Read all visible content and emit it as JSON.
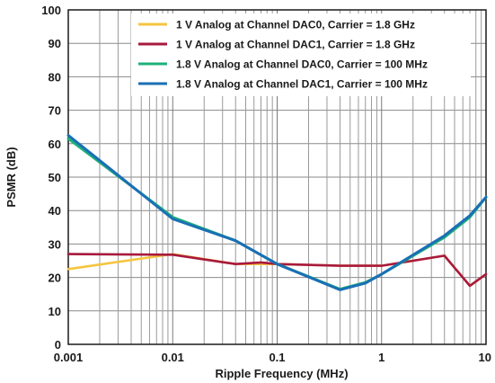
{
  "chart_data": {
    "type": "line",
    "title": "",
    "xlabel": "Ripple Frequency (MHz)",
    "ylabel": "PSMR (dB)",
    "xscale": "log",
    "xlim": [
      0.001,
      10
    ],
    "ylim": [
      0,
      100
    ],
    "x_ticks": [
      0.001,
      0.01,
      0.1,
      1,
      10
    ],
    "x_tick_labels": [
      "0.001",
      "0.01",
      "0.1",
      "1",
      "10"
    ],
    "y_ticks": [
      0,
      10,
      20,
      30,
      40,
      50,
      60,
      70,
      80,
      90,
      100
    ],
    "y_tick_labels": [
      "0",
      "10",
      "20",
      "30",
      "40",
      "50",
      "60",
      "70",
      "80",
      "90",
      "100"
    ],
    "grid": true,
    "legend_position": "top-right",
    "series": [
      {
        "name": "1 V Analog at Channel DAC0, Carrier = 1.8 GHz",
        "color": "#f5c540",
        "x": [
          0.001,
          0.01,
          0.04,
          0.1,
          0.4,
          1,
          4,
          7,
          10
        ],
        "y": [
          22.5,
          27,
          24,
          24,
          23.5,
          23.5,
          26.5,
          17.5,
          21
        ]
      },
      {
        "name": "1 V Analog at Channel DAC1, Carrier = 1.8 GHz",
        "color": "#a8193d",
        "x": [
          0.001,
          0.01,
          0.04,
          0.07,
          0.1,
          0.4,
          1,
          4,
          7,
          10
        ],
        "y": [
          27,
          26.8,
          24,
          24.5,
          24,
          23.5,
          23.5,
          26.5,
          17.5,
          21
        ]
      },
      {
        "name": "1.8 V Analog at Channel DAC0, Carrier = 100 MHz",
        "color": "#1fb07a",
        "x": [
          0.001,
          0.01,
          0.04,
          0.1,
          0.4,
          0.7,
          1,
          4,
          7,
          10
        ],
        "y": [
          61.5,
          38,
          31,
          24,
          16.5,
          18.5,
          21,
          32,
          38,
          44
        ]
      },
      {
        "name": "1.8 V Analog at Channel DAC1, Carrier = 100 MHz",
        "color": "#1a6fb5",
        "x": [
          0.001,
          0.01,
          0.04,
          0.1,
          0.4,
          0.7,
          1,
          4,
          7,
          10
        ],
        "y": [
          62.5,
          37.5,
          31,
          24,
          16.3,
          18.3,
          21,
          32.5,
          38.5,
          44
        ]
      }
    ]
  }
}
